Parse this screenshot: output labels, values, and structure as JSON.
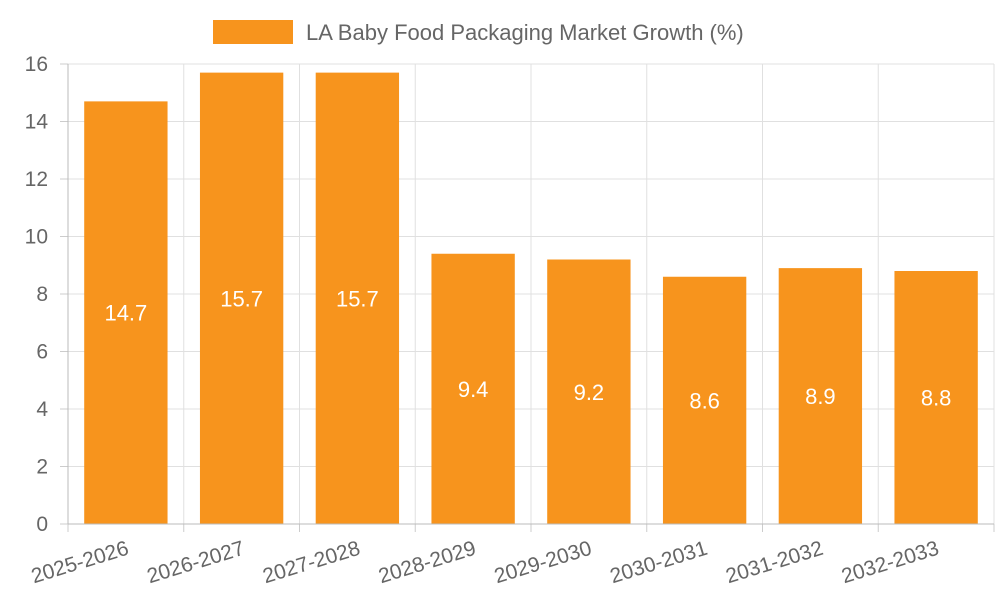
{
  "chart_data": {
    "type": "bar",
    "title": "",
    "categories": [
      "2025-2026",
      "2026-2027",
      "2027-2028",
      "2028-2029",
      "2029-2030",
      "2030-2031",
      "2031-2032",
      "2032-2033"
    ],
    "series": [
      {
        "name": "LA Baby Food Packaging Market Growth (%)",
        "values": [
          14.7,
          15.7,
          15.7,
          9.4,
          9.2,
          8.6,
          8.9,
          8.8
        ],
        "color": "#f7941d"
      }
    ],
    "xlabel": "",
    "ylabel": "",
    "ylim": [
      0,
      16
    ],
    "yticks": [
      0,
      2,
      4,
      6,
      8,
      10,
      12,
      14,
      16
    ],
    "grid": true,
    "legend_position": "top-center",
    "data_labels": true
  }
}
